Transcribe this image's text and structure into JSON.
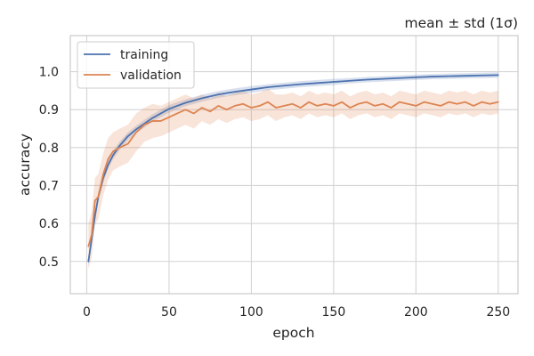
{
  "chart_data": {
    "type": "line",
    "title": "mean ± std (1σ)",
    "xlabel": "epoch",
    "ylabel": "accuracy",
    "xlim": [
      -10,
      262
    ],
    "ylim": [
      0.415,
      1.095
    ],
    "xticks": [
      0,
      50,
      100,
      150,
      200,
      250
    ],
    "yticks": [
      0.5,
      0.6,
      0.7,
      0.8,
      0.9,
      1.0
    ],
    "xtick_labels": [
      "0",
      "50",
      "100",
      "150",
      "200",
      "250"
    ],
    "ytick_labels": [
      "0.5",
      "0.6",
      "0.7",
      "0.8",
      "0.9",
      "1.0"
    ],
    "grid": true,
    "legend_position": "top-left",
    "band": "mean ± std",
    "series": [
      {
        "name": "training",
        "color": "#4C72B0",
        "x": [
          1,
          3,
          5,
          7,
          10,
          13,
          16,
          20,
          25,
          30,
          40,
          50,
          60,
          70,
          80,
          90,
          100,
          110,
          120,
          130,
          140,
          150,
          160,
          170,
          180,
          190,
          200,
          210,
          220,
          230,
          240,
          250
        ],
        "mean": [
          0.5,
          0.56,
          0.62,
          0.67,
          0.72,
          0.755,
          0.78,
          0.805,
          0.83,
          0.848,
          0.878,
          0.902,
          0.918,
          0.93,
          0.94,
          0.947,
          0.953,
          0.959,
          0.963,
          0.967,
          0.97,
          0.973,
          0.976,
          0.979,
          0.981,
          0.983,
          0.985,
          0.987,
          0.988,
          0.989,
          0.99,
          0.991
        ],
        "std": [
          0.012,
          0.012,
          0.012,
          0.012,
          0.012,
          0.011,
          0.011,
          0.011,
          0.01,
          0.01,
          0.01,
          0.01,
          0.009,
          0.009,
          0.009,
          0.009,
          0.009,
          0.008,
          0.008,
          0.008,
          0.008,
          0.008,
          0.007,
          0.007,
          0.007,
          0.007,
          0.007,
          0.007,
          0.007,
          0.007,
          0.007,
          0.007
        ]
      },
      {
        "name": "validation",
        "color": "#DD8452",
        "x": [
          1,
          3,
          5,
          7,
          10,
          13,
          16,
          20,
          25,
          30,
          35,
          40,
          45,
          50,
          55,
          60,
          65,
          70,
          75,
          80,
          85,
          90,
          95,
          100,
          105,
          110,
          115,
          120,
          125,
          130,
          135,
          140,
          145,
          150,
          155,
          160,
          165,
          170,
          175,
          180,
          185,
          190,
          195,
          200,
          205,
          210,
          215,
          220,
          225,
          230,
          235,
          240,
          245,
          250
        ],
        "mean": [
          0.54,
          0.57,
          0.66,
          0.67,
          0.73,
          0.77,
          0.79,
          0.8,
          0.81,
          0.84,
          0.86,
          0.87,
          0.87,
          0.88,
          0.89,
          0.9,
          0.89,
          0.905,
          0.895,
          0.91,
          0.9,
          0.91,
          0.915,
          0.905,
          0.91,
          0.92,
          0.905,
          0.91,
          0.915,
          0.905,
          0.92,
          0.91,
          0.915,
          0.91,
          0.92,
          0.905,
          0.915,
          0.92,
          0.91,
          0.915,
          0.905,
          0.92,
          0.915,
          0.91,
          0.92,
          0.915,
          0.91,
          0.92,
          0.915,
          0.92,
          0.91,
          0.92,
          0.915,
          0.92
        ],
        "std": [
          0.06,
          0.06,
          0.06,
          0.06,
          0.055,
          0.055,
          0.05,
          0.05,
          0.05,
          0.05,
          0.045,
          0.045,
          0.04,
          0.04,
          0.04,
          0.04,
          0.04,
          0.035,
          0.035,
          0.035,
          0.035,
          0.035,
          0.035,
          0.035,
          0.035,
          0.035,
          0.035,
          0.03,
          0.03,
          0.03,
          0.03,
          0.03,
          0.03,
          0.03,
          0.03,
          0.03,
          0.03,
          0.03,
          0.03,
          0.03,
          0.03,
          0.03,
          0.03,
          0.03,
          0.03,
          0.03,
          0.03,
          0.03,
          0.03,
          0.03,
          0.03,
          0.03,
          0.03,
          0.03
        ]
      }
    ]
  }
}
